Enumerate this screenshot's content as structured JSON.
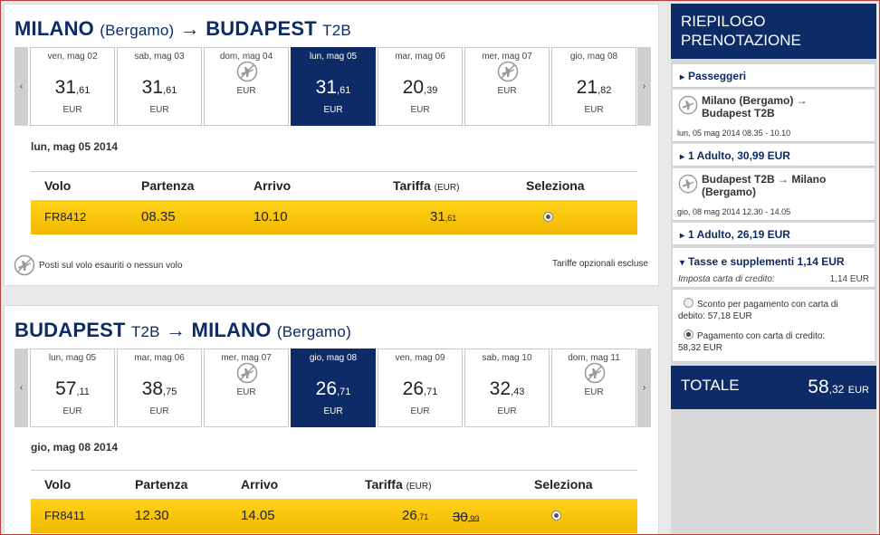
{
  "outbound": {
    "origin": "MILANO",
    "origin_sub": "(Bergamo)",
    "arrow": "→",
    "destination": "BUDAPEST",
    "destination_sub": "T2B",
    "days": [
      {
        "label": "ven, mag 02",
        "price_int": "31",
        "price_dec": ",61",
        "currency": "EUR",
        "has_flight": true,
        "selected": false
      },
      {
        "label": "sab, mag 03",
        "price_int": "31",
        "price_dec": ",61",
        "currency": "EUR",
        "has_flight": true,
        "selected": false
      },
      {
        "label": "dom, mag 04",
        "price_int": "",
        "price_dec": "",
        "currency": "EUR",
        "has_flight": false,
        "selected": false
      },
      {
        "label": "lun, mag 05",
        "price_int": "31",
        "price_dec": ",61",
        "currency": "EUR",
        "has_flight": true,
        "selected": true
      },
      {
        "label": "mar, mag 06",
        "price_int": "20",
        "price_dec": ",39",
        "currency": "EUR",
        "has_flight": true,
        "selected": false
      },
      {
        "label": "mer, mag 07",
        "price_int": "",
        "price_dec": "",
        "currency": "EUR",
        "has_flight": false,
        "selected": false
      },
      {
        "label": "gio, mag 08",
        "price_int": "21",
        "price_dec": ",82",
        "currency": "EUR",
        "has_flight": true,
        "selected": false
      }
    ],
    "selected_date": "lun, mag 05 2014",
    "headers": {
      "volo": "Volo",
      "partenza": "Partenza",
      "arrivo": "Arrivo",
      "tariffa": "Tariffa",
      "tariffa_unit": "(EUR)",
      "seleziona": "Seleziona"
    },
    "flight": {
      "number": "FR8412",
      "departure": "08.35",
      "arrival": "10.10",
      "fare_int": "31",
      "fare_dec": ",61"
    },
    "legend": "Posti sul volo esauriti o nessun volo",
    "optional_fees": "Tariffe opzionali escluse"
  },
  "return": {
    "origin": "BUDAPEST",
    "origin_sub": "T2B",
    "arrow": "→",
    "destination": "MILANO",
    "destination_sub": "(Bergamo)",
    "days": [
      {
        "label": "lun, mag 05",
        "price_int": "57",
        "price_dec": ",11",
        "currency": "EUR",
        "has_flight": true,
        "selected": false
      },
      {
        "label": "mar, mag 06",
        "price_int": "38",
        "price_dec": ",75",
        "currency": "EUR",
        "has_flight": true,
        "selected": false
      },
      {
        "label": "mer, mag 07",
        "price_int": "",
        "price_dec": "",
        "currency": "EUR",
        "has_flight": false,
        "selected": false
      },
      {
        "label": "gio, mag 08",
        "price_int": "26",
        "price_dec": ",71",
        "currency": "EUR",
        "has_flight": true,
        "selected": true
      },
      {
        "label": "ven, mag 09",
        "price_int": "26",
        "price_dec": ",71",
        "currency": "EUR",
        "has_flight": true,
        "selected": false
      },
      {
        "label": "sab, mag 10",
        "price_int": "32",
        "price_dec": ",43",
        "currency": "EUR",
        "has_flight": true,
        "selected": false
      },
      {
        "label": "dom, mag 11",
        "price_int": "",
        "price_dec": "",
        "currency": "EUR",
        "has_flight": false,
        "selected": false
      }
    ],
    "selected_date": "gio, mag 08 2014",
    "headers": {
      "volo": "Volo",
      "partenza": "Partenza",
      "arrivo": "Arrivo",
      "tariffa": "Tariffa",
      "tariffa_unit": "(EUR)",
      "seleziona": "Seleziona"
    },
    "flight": {
      "number": "FR8411",
      "departure": "12.30",
      "arrival": "14.05",
      "fare_int": "26",
      "fare_dec": ",71",
      "old_fare_int": "30",
      "old_fare_dec": ",99"
    }
  },
  "summary": {
    "title_line1": "RIEPILOGO",
    "title_line2": "PRENOTAZIONE",
    "passengers_label": "Passeggeri",
    "leg1_route_line1": "Milano (Bergamo) →",
    "leg1_route_line2": "Budapest T2B",
    "leg1_time": "lun, 05 mag 2014 08.35 - 10.10",
    "leg1_fare": "1 Adulto, 30,99 EUR",
    "leg2_route_line1": "Budapest T2B → Milano",
    "leg2_route_line2": "(Bergamo)",
    "leg2_time": "gio, 08 mag 2014 12.30 - 14.05",
    "leg2_fare": "1 Adulto, 26,19 EUR",
    "taxes_label": "Tasse e supplementi 1,14 EUR",
    "cc_fee_label": "Imposta carta di credito:",
    "cc_fee_value": "1,14 EUR",
    "debit_option_line1": "Sconto per pagamento con carta di",
    "debit_option_line2": "debito: 57,18 EUR",
    "credit_option_line1": "Pagamento con carta di credito:",
    "credit_option_line2": "58,32 EUR",
    "total_label": "TOTALE",
    "total_int": "58",
    "total_dec": ",32",
    "total_currency": "EUR"
  },
  "colors": {
    "navy": "#0d2b66",
    "yellow": "#f7c500"
  }
}
